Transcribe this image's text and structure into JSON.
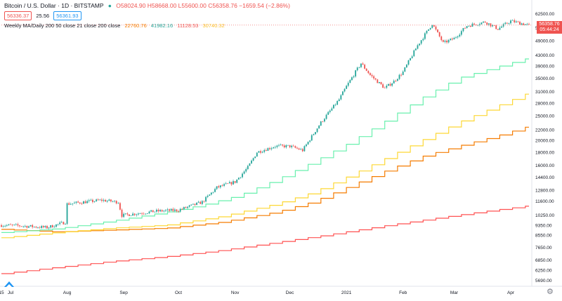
{
  "header": {
    "symbol": "Bitcoin / U.S. Dollar · 1D · BITSTAMP",
    "ohlc": "O58024.90 H58668.00 L55600.00 C56358.76 −1659.54 (−2.86%)"
  },
  "chips": {
    "sell": "56336.37",
    "spread": "25.56",
    "buy": "56361.93"
  },
  "indicator": {
    "label": "Weekly MA/Daily 200 50 close 21 close 200 close",
    "v1": "22760.76",
    "v2": "41982.16",
    "v3": "11128.53",
    "v4": "30740.32"
  },
  "last_price": {
    "price": "56358.76",
    "time": "05:44:24"
  },
  "colors": {
    "up": "#26a69a",
    "down": "#ef5350",
    "ma_orange": "#f57c00",
    "ma_green": "#69f0ae",
    "ma_red": "#ff5252",
    "ma_yellow": "#fdd835"
  },
  "chart_data": {
    "type": "line",
    "title": "Bitcoin / U.S. Dollar · 1D · BITSTAMP",
    "scale": "log",
    "ylim": [
      5400,
      68000
    ],
    "grid": false,
    "y_ticks": [
      5690,
      6250,
      6850,
      7650,
      8550,
      9350,
      10250,
      11600,
      12800,
      14400,
      16000,
      18000,
      20000,
      22000,
      25000,
      28000,
      31000,
      35000,
      39000,
      43000,
      49000,
      55000,
      62500
    ],
    "x_ticks": [
      {
        "label": "15",
        "d": 0
      },
      {
        "label": "Jul",
        "d": 5
      },
      {
        "label": "Aug",
        "d": 36
      },
      {
        "label": "Sep",
        "d": 67
      },
      {
        "label": "Oct",
        "d": 97
      },
      {
        "label": "Nov",
        "d": 128
      },
      {
        "label": "Dec",
        "d": 158
      },
      {
        "label": "2021",
        "d": 189
      },
      {
        "label": "Feb",
        "d": 220
      },
      {
        "label": "Mar",
        "d": 248
      },
      {
        "label": "Apr",
        "d": 279
      }
    ],
    "price_path": [
      [
        0,
        9350
      ],
      [
        10,
        9300
      ],
      [
        25,
        9150
      ],
      [
        35,
        9600
      ],
      [
        36,
        11300
      ],
      [
        45,
        11500
      ],
      [
        55,
        11700
      ],
      [
        64,
        11500
      ],
      [
        66,
        10200
      ],
      [
        75,
        10400
      ],
      [
        85,
        10600
      ],
      [
        97,
        10700
      ],
      [
        110,
        11500
      ],
      [
        118,
        13100
      ],
      [
        128,
        13800
      ],
      [
        135,
        15700
      ],
      [
        140,
        18000
      ],
      [
        150,
        19000
      ],
      [
        158,
        19000
      ],
      [
        165,
        18300
      ],
      [
        175,
        23500
      ],
      [
        185,
        28900
      ],
      [
        189,
        32500
      ],
      [
        195,
        38000
      ],
      [
        197,
        40000
      ],
      [
        202,
        36000
      ],
      [
        210,
        32000
      ],
      [
        215,
        34000
      ],
      [
        220,
        37000
      ],
      [
        228,
        47000
      ],
      [
        236,
        57000
      ],
      [
        242,
        48000
      ],
      [
        248,
        50000
      ],
      [
        255,
        56000
      ],
      [
        265,
        58000
      ],
      [
        272,
        54500
      ],
      [
        279,
        58500
      ],
      [
        289,
        56358
      ]
    ],
    "series": [
      {
        "name": "",
        "color": "#ff5252",
        "values": [
          [
            0,
            6050
          ],
          [
            30,
            6400
          ],
          [
            60,
            6750
          ],
          [
            90,
            7050
          ],
          [
            120,
            7450
          ],
          [
            150,
            8000
          ],
          [
            180,
            8600
          ],
          [
            210,
            9300
          ],
          [
            240,
            10000
          ],
          [
            270,
            10700
          ],
          [
            289,
            11128
          ]
        ]
      },
      {
        "name": "",
        "color": "#f57c00",
        "values": [
          [
            0,
            9000
          ],
          [
            30,
            8800
          ],
          [
            60,
            8950
          ],
          [
            90,
            9100
          ],
          [
            120,
            9600
          ],
          [
            150,
            10500
          ],
          [
            170,
            11500
          ],
          [
            190,
            13200
          ],
          [
            210,
            15200
          ],
          [
            230,
            17300
          ],
          [
            250,
            19000
          ],
          [
            270,
            20700
          ],
          [
            289,
            22760
          ]
        ]
      },
      {
        "name": "",
        "color": "#fdd835",
        "values": [
          [
            0,
            8350
          ],
          [
            30,
            8750
          ],
          [
            60,
            9100
          ],
          [
            90,
            9350
          ],
          [
            120,
            10100
          ],
          [
            150,
            11300
          ],
          [
            170,
            12500
          ],
          [
            190,
            14500
          ],
          [
            210,
            17000
          ],
          [
            230,
            20000
          ],
          [
            250,
            23500
          ],
          [
            270,
            27000
          ],
          [
            289,
            30740
          ]
        ]
      },
      {
        "name": "",
        "color": "#69f0ae",
        "values": [
          [
            0,
            8750
          ],
          [
            30,
            9050
          ],
          [
            60,
            9700
          ],
          [
            90,
            10500
          ],
          [
            110,
            11200
          ],
          [
            130,
            12200
          ],
          [
            150,
            14000
          ],
          [
            170,
            16400
          ],
          [
            190,
            19500
          ],
          [
            210,
            23800
          ],
          [
            230,
            29300
          ],
          [
            250,
            35000
          ],
          [
            270,
            38500
          ],
          [
            289,
            41982
          ]
        ]
      }
    ]
  }
}
